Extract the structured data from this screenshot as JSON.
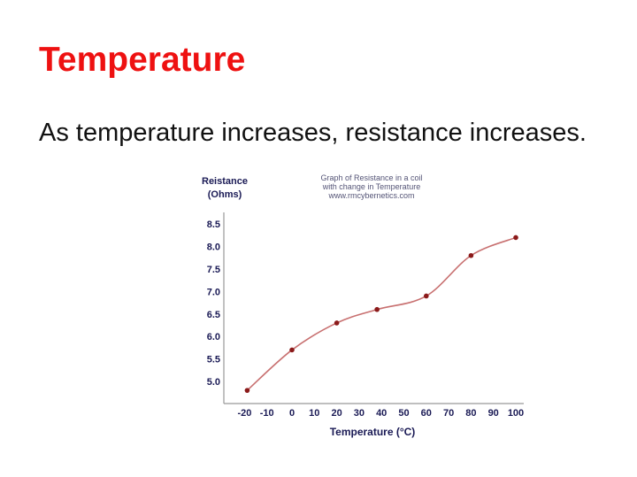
{
  "slide": {
    "title": "Temperature",
    "body": "As temperature increases, resistance increases."
  },
  "colors": {
    "title": "#ee1111",
    "curve": "#c87070",
    "points": "#8b1a1a",
    "axis_text": "#1a1a55"
  },
  "chart_data": {
    "type": "line",
    "title_lines": [
      "Graph of Resistance in a coil",
      "with change in Temperature",
      "www.rmcybernetics.com"
    ],
    "ylabel_lines": [
      "Reistance",
      "(Ohms)"
    ],
    "xlabel": "Temperature (°C)",
    "x_ticks": [
      -20,
      -10,
      0,
      10,
      20,
      30,
      40,
      50,
      60,
      70,
      80,
      90,
      100
    ],
    "y_ticks": [
      "5.0",
      "5.5",
      "6.0",
      "6.5",
      "7.0",
      "7.5",
      "8.0",
      "8.5"
    ],
    "xlim": [
      -25,
      103
    ],
    "ylim": [
      4.6,
      8.75
    ],
    "smooth": true,
    "grid": false,
    "x": [
      -20,
      0,
      20,
      38,
      60,
      80,
      100
    ],
    "y": [
      4.8,
      5.7,
      6.3,
      6.6,
      6.9,
      7.8,
      8.2
    ]
  }
}
